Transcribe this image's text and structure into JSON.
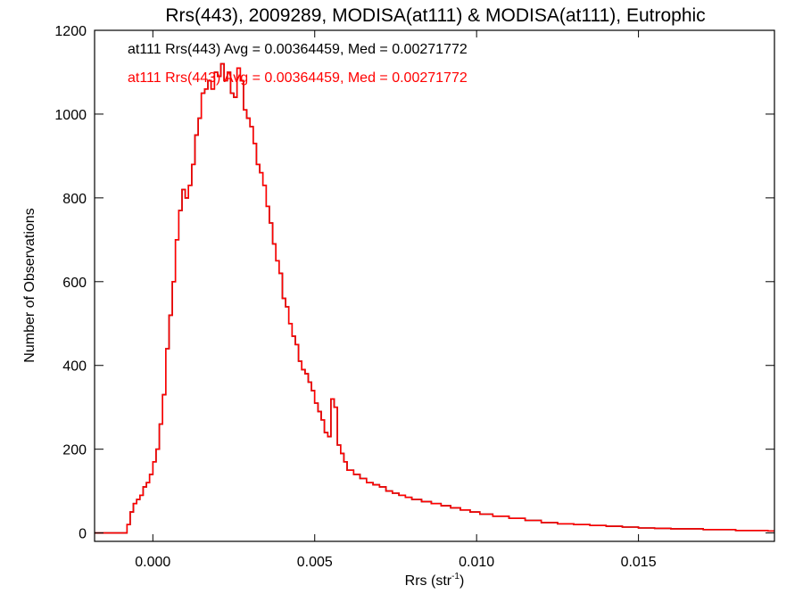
{
  "chart_data": {
    "type": "line",
    "title": "Rrs(443), 2009289, MODISA(at111) & MODISA(at111), Eutrophic",
    "xlabel_main": "Rrs (str",
    "xlabel_sup": "-1",
    "xlabel_tail": ")",
    "ylabel": "Number of Observations",
    "xlim": [
      -0.0018,
      0.0192
    ],
    "ylim": [
      -20,
      1200
    ],
    "x_ticks": [
      0.0,
      0.005,
      0.01,
      0.015
    ],
    "x_tick_labels": [
      "0.000",
      "0.005",
      "0.010",
      "0.015"
    ],
    "y_ticks": [
      0,
      200,
      400,
      600,
      800,
      1000,
      1200
    ],
    "y_tick_labels": [
      "0",
      "200",
      "400",
      "600",
      "800",
      "1000",
      "1200"
    ],
    "grid": false,
    "legend_placement": "top-left",
    "series": [
      {
        "name": "at111 Rrs(443) Avg = 0.00364459, Med = 0.00271772",
        "color": "#000000",
        "step": "post",
        "points": [
          [
            -0.0018,
            0
          ],
          [
            -0.0009,
            0
          ],
          [
            -0.0008,
            20
          ],
          [
            -0.0007,
            50
          ],
          [
            -0.0006,
            70
          ],
          [
            -0.0005,
            80
          ],
          [
            -0.0004,
            90
          ],
          [
            -0.0003,
            110
          ],
          [
            -0.0002,
            120
          ],
          [
            -0.0001,
            140
          ],
          [
            0.0,
            170
          ],
          [
            0.0001,
            200
          ],
          [
            0.0002,
            260
          ],
          [
            0.0003,
            330
          ],
          [
            0.0004,
            440
          ],
          [
            0.0005,
            520
          ],
          [
            0.0006,
            600
          ],
          [
            0.0007,
            700
          ],
          [
            0.0008,
            770
          ],
          [
            0.0009,
            820
          ],
          [
            0.001,
            800
          ],
          [
            0.0011,
            830
          ],
          [
            0.0012,
            880
          ],
          [
            0.0013,
            950
          ],
          [
            0.0014,
            990
          ],
          [
            0.0015,
            1050
          ],
          [
            0.0016,
            1060
          ],
          [
            0.0017,
            1080
          ],
          [
            0.0018,
            1060
          ],
          [
            0.0019,
            1100
          ],
          [
            0.002,
            1090
          ],
          [
            0.0021,
            1120
          ],
          [
            0.0022,
            1080
          ],
          [
            0.0023,
            1100
          ],
          [
            0.0024,
            1050
          ],
          [
            0.0025,
            1040
          ],
          [
            0.0026,
            1110
          ],
          [
            0.0027,
            1080
          ],
          [
            0.0028,
            1010
          ],
          [
            0.0029,
            990
          ],
          [
            0.003,
            970
          ],
          [
            0.0031,
            930
          ],
          [
            0.0032,
            880
          ],
          [
            0.0033,
            860
          ],
          [
            0.0034,
            830
          ],
          [
            0.0035,
            780
          ],
          [
            0.0036,
            740
          ],
          [
            0.0037,
            690
          ],
          [
            0.0038,
            650
          ],
          [
            0.0039,
            620
          ],
          [
            0.004,
            560
          ],
          [
            0.0041,
            540
          ],
          [
            0.0042,
            500
          ],
          [
            0.0043,
            470
          ],
          [
            0.0044,
            450
          ],
          [
            0.0045,
            410
          ],
          [
            0.0046,
            390
          ],
          [
            0.0047,
            380
          ],
          [
            0.0048,
            360
          ],
          [
            0.0049,
            340
          ],
          [
            0.005,
            310
          ],
          [
            0.0051,
            290
          ],
          [
            0.0052,
            270
          ],
          [
            0.0053,
            240
          ],
          [
            0.0054,
            230
          ],
          [
            0.0055,
            320
          ],
          [
            0.0056,
            300
          ],
          [
            0.0057,
            210
          ],
          [
            0.0058,
            190
          ],
          [
            0.0059,
            170
          ],
          [
            0.006,
            150
          ],
          [
            0.0062,
            140
          ],
          [
            0.0064,
            130
          ],
          [
            0.0066,
            120
          ],
          [
            0.0068,
            115
          ],
          [
            0.007,
            110
          ],
          [
            0.0072,
            100
          ],
          [
            0.0074,
            95
          ],
          [
            0.0076,
            90
          ],
          [
            0.0078,
            85
          ],
          [
            0.008,
            80
          ],
          [
            0.0083,
            75
          ],
          [
            0.0086,
            70
          ],
          [
            0.0089,
            65
          ],
          [
            0.0092,
            60
          ],
          [
            0.0095,
            55
          ],
          [
            0.0098,
            50
          ],
          [
            0.0101,
            45
          ],
          [
            0.0105,
            40
          ],
          [
            0.011,
            35
          ],
          [
            0.0115,
            30
          ],
          [
            0.012,
            25
          ],
          [
            0.0125,
            22
          ],
          [
            0.013,
            20
          ],
          [
            0.0135,
            18
          ],
          [
            0.014,
            16
          ],
          [
            0.0145,
            14
          ],
          [
            0.015,
            12
          ],
          [
            0.0155,
            11
          ],
          [
            0.016,
            10
          ],
          [
            0.017,
            8
          ],
          [
            0.018,
            6
          ],
          [
            0.019,
            5
          ],
          [
            0.0192,
            5
          ]
        ]
      },
      {
        "name": "at111 Rrs(443) Avg = 0.00364459, Med = 0.00271772",
        "color": "#ff0000",
        "step": "post",
        "points": [
          [
            -0.0018,
            0
          ],
          [
            -0.0009,
            0
          ],
          [
            -0.0008,
            20
          ],
          [
            -0.0007,
            50
          ],
          [
            -0.0006,
            70
          ],
          [
            -0.0005,
            80
          ],
          [
            -0.0004,
            90
          ],
          [
            -0.0003,
            110
          ],
          [
            -0.0002,
            120
          ],
          [
            -0.0001,
            140
          ],
          [
            0.0,
            170
          ],
          [
            0.0001,
            200
          ],
          [
            0.0002,
            260
          ],
          [
            0.0003,
            330
          ],
          [
            0.0004,
            440
          ],
          [
            0.0005,
            520
          ],
          [
            0.0006,
            600
          ],
          [
            0.0007,
            700
          ],
          [
            0.0008,
            770
          ],
          [
            0.0009,
            820
          ],
          [
            0.001,
            800
          ],
          [
            0.0011,
            830
          ],
          [
            0.0012,
            880
          ],
          [
            0.0013,
            950
          ],
          [
            0.0014,
            990
          ],
          [
            0.0015,
            1050
          ],
          [
            0.0016,
            1060
          ],
          [
            0.0017,
            1080
          ],
          [
            0.0018,
            1060
          ],
          [
            0.0019,
            1100
          ],
          [
            0.002,
            1090
          ],
          [
            0.0021,
            1120
          ],
          [
            0.0022,
            1080
          ],
          [
            0.0023,
            1100
          ],
          [
            0.0024,
            1050
          ],
          [
            0.0025,
            1040
          ],
          [
            0.0026,
            1110
          ],
          [
            0.0027,
            1080
          ],
          [
            0.0028,
            1010
          ],
          [
            0.0029,
            990
          ],
          [
            0.003,
            970
          ],
          [
            0.0031,
            930
          ],
          [
            0.0032,
            880
          ],
          [
            0.0033,
            860
          ],
          [
            0.0034,
            830
          ],
          [
            0.0035,
            780
          ],
          [
            0.0036,
            740
          ],
          [
            0.0037,
            690
          ],
          [
            0.0038,
            650
          ],
          [
            0.0039,
            620
          ],
          [
            0.004,
            560
          ],
          [
            0.0041,
            540
          ],
          [
            0.0042,
            500
          ],
          [
            0.0043,
            470
          ],
          [
            0.0044,
            450
          ],
          [
            0.0045,
            410
          ],
          [
            0.0046,
            390
          ],
          [
            0.0047,
            380
          ],
          [
            0.0048,
            360
          ],
          [
            0.0049,
            340
          ],
          [
            0.005,
            310
          ],
          [
            0.0051,
            290
          ],
          [
            0.0052,
            270
          ],
          [
            0.0053,
            240
          ],
          [
            0.0054,
            230
          ],
          [
            0.0055,
            320
          ],
          [
            0.0056,
            300
          ],
          [
            0.0057,
            210
          ],
          [
            0.0058,
            190
          ],
          [
            0.0059,
            170
          ],
          [
            0.006,
            150
          ],
          [
            0.0062,
            140
          ],
          [
            0.0064,
            130
          ],
          [
            0.0066,
            120
          ],
          [
            0.0068,
            115
          ],
          [
            0.007,
            110
          ],
          [
            0.0072,
            100
          ],
          [
            0.0074,
            95
          ],
          [
            0.0076,
            90
          ],
          [
            0.0078,
            85
          ],
          [
            0.008,
            80
          ],
          [
            0.0083,
            75
          ],
          [
            0.0086,
            70
          ],
          [
            0.0089,
            65
          ],
          [
            0.0092,
            60
          ],
          [
            0.0095,
            55
          ],
          [
            0.0098,
            50
          ],
          [
            0.0101,
            45
          ],
          [
            0.0105,
            40
          ],
          [
            0.011,
            35
          ],
          [
            0.0115,
            30
          ],
          [
            0.012,
            25
          ],
          [
            0.0125,
            22
          ],
          [
            0.013,
            20
          ],
          [
            0.0135,
            18
          ],
          [
            0.014,
            16
          ],
          [
            0.0145,
            14
          ],
          [
            0.015,
            12
          ],
          [
            0.0155,
            11
          ],
          [
            0.016,
            10
          ],
          [
            0.017,
            8
          ],
          [
            0.018,
            6
          ],
          [
            0.019,
            5
          ],
          [
            0.0192,
            5
          ]
        ]
      }
    ]
  }
}
